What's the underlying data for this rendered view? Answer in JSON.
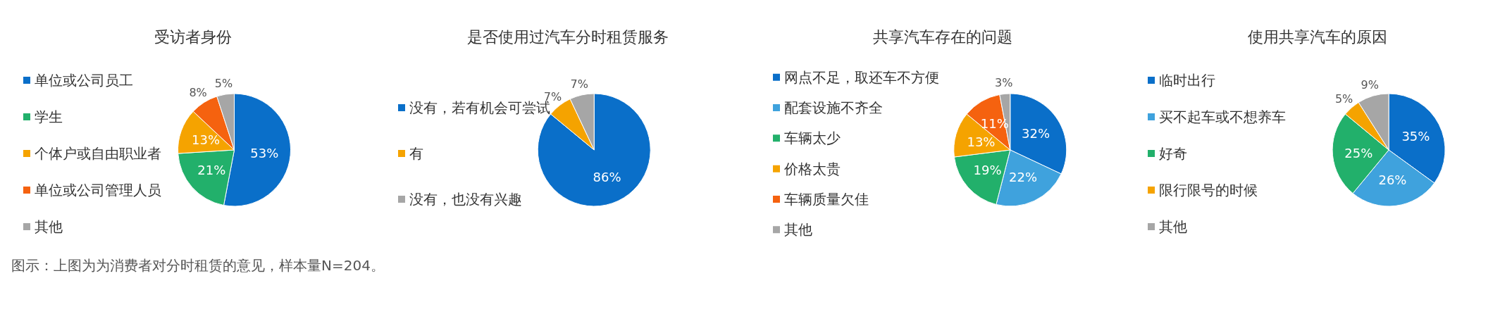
{
  "chart_data": [
    {
      "type": "pie",
      "title": "受访者身份",
      "categories": [
        "单位或公司员工",
        "学生",
        "个体户或自由职业者",
        "单位或公司管理人员",
        "其他"
      ],
      "values": [
        53,
        21,
        13,
        8,
        5
      ],
      "value_labels": [
        "53%",
        "21%",
        "13%",
        "8%",
        "5%"
      ],
      "colors": [
        "#0a6fc9",
        "#22b06b",
        "#f5a300",
        "#f5620f",
        "#a6a6a6"
      ],
      "legend": "left",
      "annotations": [
        "图示：上图为为消费者对分时租赁的意见，样本量N=204。"
      ]
    },
    {
      "type": "pie",
      "title": "是否使用过汽车分时租赁服务",
      "categories": [
        "没有，若有机会可尝试",
        "有",
        "没有，也没有兴趣"
      ],
      "values": [
        86,
        7,
        7
      ],
      "value_labels": [
        "86%",
        "7%",
        "7%"
      ],
      "colors": [
        "#0a6fc9",
        "#f5a300",
        "#a6a6a6"
      ],
      "legend": "left"
    },
    {
      "type": "pie",
      "title": "共享汽车存在的问题",
      "categories": [
        "网点不足，取还车不方便",
        "配套设施不齐全",
        "车辆太少",
        "价格太贵",
        "车辆质量欠佳",
        "其他"
      ],
      "values": [
        32,
        22,
        19,
        13,
        11,
        3
      ],
      "value_labels": [
        "32%",
        "22%",
        "19%",
        "13%",
        "11%",
        "3%"
      ],
      "colors": [
        "#0a6fc9",
        "#3fa2dd",
        "#22b06b",
        "#f5a300",
        "#f5620f",
        "#a6a6a6"
      ],
      "legend": "left"
    },
    {
      "type": "pie",
      "title": "使用共享汽车的原因",
      "categories": [
        "临时出行",
        "买不起车或不想养车",
        "好奇",
        "限行限号的时候",
        "其他"
      ],
      "values": [
        35,
        26,
        25,
        5,
        9
      ],
      "value_labels": [
        "35%",
        "26%",
        "25%",
        "5%",
        "9%"
      ],
      "colors": [
        "#0a6fc9",
        "#3fa2dd",
        "#22b06b",
        "#f5a300",
        "#a6a6a6"
      ],
      "legend": "left"
    }
  ]
}
